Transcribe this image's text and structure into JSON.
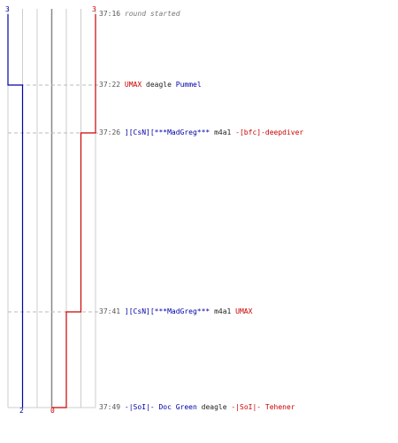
{
  "teams": {
    "blue": {
      "color": "#0000aa",
      "start_count": "3",
      "end_count": "2"
    },
    "red": {
      "color": "#cc0000",
      "start_count": "3",
      "end_count": "0"
    }
  },
  "chart_data": {
    "type": "line",
    "x_unit": "time",
    "series": [
      {
        "team": "blue",
        "points": [
          {
            "t": "37:16",
            "alive": 3
          },
          {
            "t": "37:22",
            "alive": 2
          },
          {
            "t": "37:49",
            "alive": 2
          }
        ]
      },
      {
        "team": "red",
        "points": [
          {
            "t": "37:16",
            "alive": 3
          },
          {
            "t": "37:26",
            "alive": 2
          },
          {
            "t": "37:41",
            "alive": 1
          },
          {
            "t": "37:49",
            "alive": 0
          }
        ]
      }
    ],
    "ylim": [
      0,
      6
    ],
    "grid": true
  },
  "events": [
    {
      "time": "37:16",
      "message": "round started"
    },
    {
      "time": "37:22",
      "killer": "UMAX",
      "killer_team": "red",
      "weapon": "deagle",
      "victim": "Pummel",
      "victim_team": "blue"
    },
    {
      "time": "37:26",
      "killer": "][CsN][***MadGreg***",
      "killer_team": "blue",
      "weapon": "m4a1",
      "victim": "-[bfc]-deepdiver",
      "victim_team": "red"
    },
    {
      "time": "37:41",
      "killer": "][CsN][***MadGreg***",
      "killer_team": "blue",
      "weapon": "m4a1",
      "victim": "UMAX",
      "victim_team": "red"
    },
    {
      "time": "37:49",
      "killer": "-|SoI|- Doc Green",
      "killer_team": "blue",
      "weapon": "deagle",
      "victim": "-|SoI|- Tehener",
      "victim_team": "red"
    }
  ]
}
